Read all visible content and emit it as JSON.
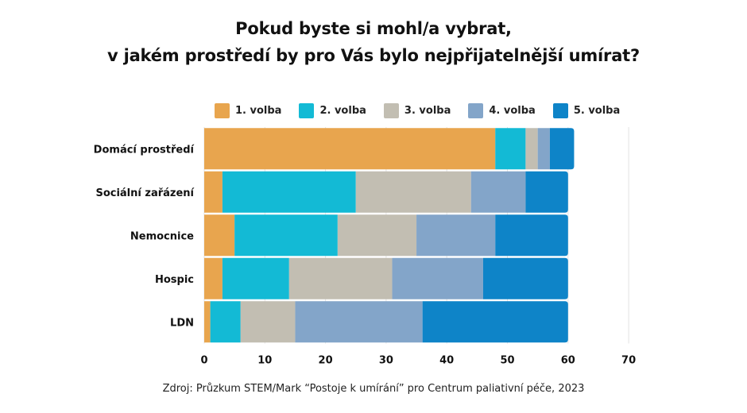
{
  "chart_data": {
    "type": "bar",
    "orientation": "horizontal",
    "stacked": true,
    "title": "Pokud byste si mohl/a vybrat,",
    "subtitle": "v jakém prostředí by pro Vás bylo nejpřijatelnější umírat?",
    "categories": [
      "Domácí prostředí",
      "Sociální zařázení",
      "Nemocnice",
      "Hospic",
      "LDN"
    ],
    "series": [
      {
        "name": "1. volba",
        "color": "#E8A54E",
        "values": [
          48,
          3,
          5,
          3,
          1
        ]
      },
      {
        "name": "2. volba",
        "color": "#13BAD5",
        "values": [
          5,
          22,
          17,
          11,
          5
        ]
      },
      {
        "name": "3. volba",
        "color": "#C2BEB2",
        "values": [
          2,
          19,
          13,
          17,
          9
        ]
      },
      {
        "name": "4. volba",
        "color": "#83A5C9",
        "values": [
          2,
          9,
          13,
          15,
          21
        ]
      },
      {
        "name": "5. volba",
        "color": "#0E84C8",
        "values": [
          4,
          7,
          12,
          14,
          24
        ]
      }
    ],
    "xlim": [
      0,
      70
    ],
    "xticks": [
      0,
      10,
      20,
      30,
      40,
      50,
      60,
      70
    ],
    "xlabel": "",
    "ylabel": "",
    "grid": true,
    "legend_position": "top",
    "source": "Zdroj: Průzkum STEM/Mark “Postoje k umírání” pro Centrum paliativní péče, 2023"
  }
}
